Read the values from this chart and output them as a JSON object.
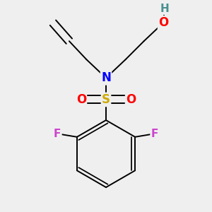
{
  "bg_color": "#efefef",
  "atom_colors": {
    "C": "#000000",
    "N": "#0000ff",
    "O": "#ff0000",
    "S": "#ccaa00",
    "F": "#cc44cc",
    "H": "#4a9090"
  },
  "bond_color": "#000000",
  "bond_width": 1.4,
  "font_size": 11,
  "fig_size": [
    3.0,
    3.0
  ],
  "dpi": 100,
  "xlim": [
    0.05,
    0.95
  ],
  "ylim": [
    0.02,
    0.98
  ]
}
